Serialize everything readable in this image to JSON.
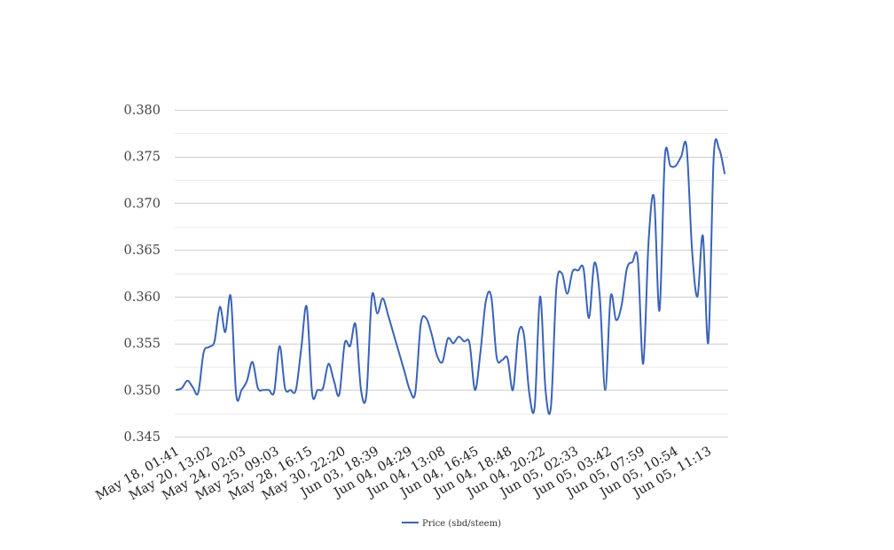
{
  "chart_data": {
    "type": "line",
    "title": "",
    "xlabel": "",
    "ylabel": "",
    "ylim": [
      0.345,
      0.38
    ],
    "y_ticks": [
      "0.345",
      "0.350",
      "0.355",
      "0.360",
      "0.365",
      "0.370",
      "0.375",
      "0.380"
    ],
    "x_tick_labels": [
      "May 18, 01:41",
      "May 20, 13:02",
      "May 24, 02:03",
      "May 25, 09:03",
      "May 28, 16:15",
      "May 30, 22:20",
      "Jun 03, 18:39",
      "Jun 04, 04:29",
      "Jun 04, 13:08",
      "Jun 04, 16:45",
      "Jun 04, 18:48",
      "Jun 04, 20:22",
      "Jun 05, 02:33",
      "Jun 05, 03:42",
      "Jun 05, 07:59",
      "Jun 05, 10:54",
      "Jun 05, 11:13"
    ],
    "grid": true,
    "legend_position": "bottom-center",
    "series": [
      {
        "name": "Price (sbd/steem)",
        "color": "#3a63b8",
        "values": [
          0.35,
          0.3502,
          0.351,
          0.3503,
          0.3497,
          0.354,
          0.3546,
          0.3552,
          0.3589,
          0.3562,
          0.36,
          0.3495,
          0.35,
          0.351,
          0.353,
          0.3502,
          0.35,
          0.35,
          0.3498,
          0.3547,
          0.3502,
          0.35,
          0.35,
          0.3545,
          0.3589,
          0.3496,
          0.35,
          0.3502,
          0.3528,
          0.351,
          0.3495,
          0.355,
          0.3547,
          0.357,
          0.35,
          0.3495,
          0.36,
          0.3582,
          0.3598,
          0.358,
          0.356,
          0.354,
          0.352,
          0.35,
          0.3497,
          0.357,
          0.3577,
          0.356,
          0.3537,
          0.353,
          0.3555,
          0.355,
          0.3557,
          0.3552,
          0.355,
          0.35,
          0.354,
          0.3595,
          0.36,
          0.3535,
          0.3532,
          0.3534,
          0.35,
          0.356,
          0.356,
          0.3497,
          0.3482,
          0.36,
          0.35,
          0.3482,
          0.361,
          0.3625,
          0.3603,
          0.3627,
          0.3628,
          0.363,
          0.3577,
          0.3636,
          0.36,
          0.35,
          0.36,
          0.3575,
          0.359,
          0.363,
          0.3637,
          0.364,
          0.3528,
          0.366,
          0.3706,
          0.3585,
          0.375,
          0.374,
          0.374,
          0.375,
          0.376,
          0.365,
          0.36,
          0.3665,
          0.3551,
          0.375,
          0.3758,
          0.3732
        ]
      }
    ]
  }
}
